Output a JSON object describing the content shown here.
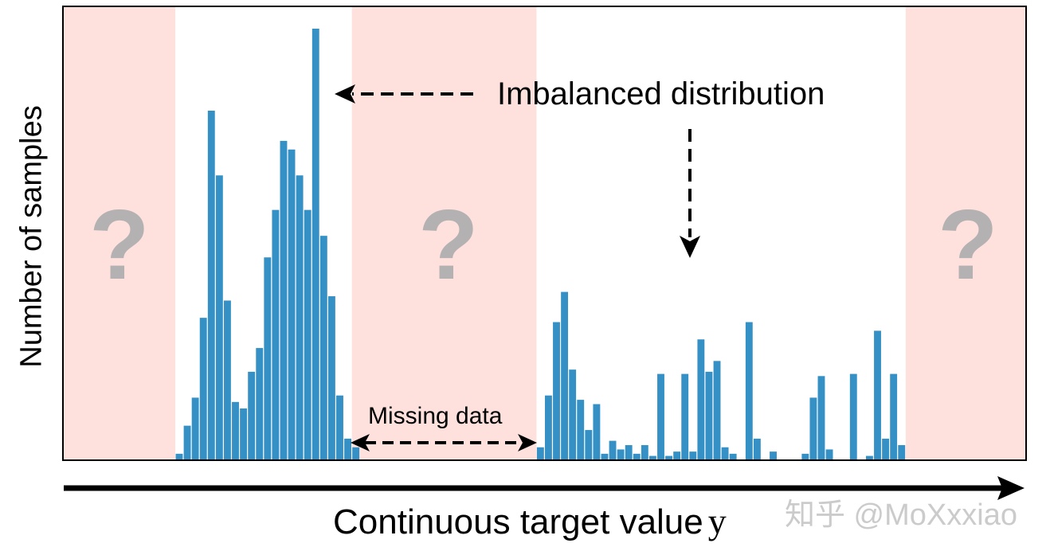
{
  "chart_data": {
    "type": "bar",
    "title": "",
    "xlabel_text": "Continuous target value",
    "xlabel_var": "y",
    "ylabel": "Number of samples",
    "grid": false,
    "legend": "none",
    "x_range": [
      0,
      120
    ],
    "ylim": [
      0,
      100
    ],
    "bar_color": "#3490c5",
    "shaded_regions": [
      {
        "start": 0,
        "end": 14,
        "color": "#fee0dd",
        "label": "?"
      },
      {
        "start": 36,
        "end": 59,
        "color": "#fee0dd",
        "label": "?"
      },
      {
        "start": 105,
        "end": 120,
        "color": "#fee0dd",
        "label": "?"
      }
    ],
    "bins": [
      {
        "start": 14,
        "values": [
          1.5,
          8,
          14.5,
          33,
          81,
          66,
          37,
          13.5,
          12,
          20.5,
          26,
          47,
          58,
          74,
          72,
          66,
          58,
          100,
          52,
          38,
          15,
          5,
          3
        ]
      },
      {
        "start": 59,
        "values": [
          3,
          15,
          32,
          39,
          21,
          14,
          7,
          13,
          1.5,
          4.5,
          2.5,
          3.5,
          1.5,
          3.5,
          1,
          20,
          1,
          2,
          20,
          2,
          28,
          20.5,
          23,
          3,
          1.5,
          0,
          32,
          5
        ]
      },
      {
        "start": 88,
        "values": [
          2,
          0,
          0,
          0,
          1.5,
          14.5,
          19.5,
          2.5,
          0,
          0,
          20,
          0,
          1,
          30,
          5,
          20,
          3.5
        ]
      }
    ],
    "annotations": [
      {
        "text": "Imbalanced distribution"
      },
      {
        "text": "Missing data"
      }
    ]
  },
  "labels": {
    "question_mark": "?",
    "watermark": "知乎 @MoXxxiao"
  },
  "colors": {
    "axis": "#000000",
    "shade": "#fee0dd",
    "bar": "#3490c5",
    "question": "#b3b1b1"
  }
}
